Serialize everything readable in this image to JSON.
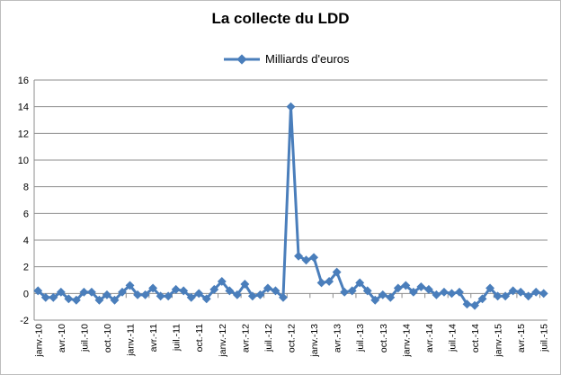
{
  "chart_data": {
    "type": "line",
    "title": "La collecte du LDD",
    "legend_position": "top",
    "grid": true,
    "color": "#4a7ebb",
    "series": [
      {
        "name": "Milliards d'euros",
        "values": [
          0.2,
          -0.3,
          -0.3,
          0.1,
          -0.4,
          -0.5,
          0.1,
          0.1,
          -0.5,
          -0.1,
          -0.5,
          0.1,
          0.6,
          -0.1,
          -0.1,
          0.4,
          -0.2,
          -0.2,
          0.3,
          0.2,
          -0.3,
          0.0,
          -0.4,
          0.3,
          0.9,
          0.2,
          -0.1,
          0.7,
          -0.2,
          -0.1,
          0.4,
          0.2,
          -0.3,
          14.0,
          2.8,
          2.5,
          2.7,
          0.8,
          0.9,
          1.6,
          0.1,
          0.2,
          0.8,
          0.2,
          -0.5,
          -0.1,
          -0.3,
          0.4,
          0.6,
          0.1,
          0.5,
          0.3,
          -0.1,
          0.1,
          0.0,
          0.1,
          -0.8,
          -0.9,
          -0.4,
          0.4,
          -0.2,
          -0.2,
          0.2,
          0.1,
          -0.2,
          0.1,
          0.0
        ]
      }
    ],
    "x_tick_labels": [
      "janv.-10",
      "avr.-10",
      "juil.-10",
      "oct.-10",
      "janv.-11",
      "avr.-11",
      "juil.-11",
      "oct.-11",
      "janv.-12",
      "avr.-12",
      "juil.-12",
      "oct.-12",
      "janv.-13",
      "avr.-13",
      "juil.-13",
      "oct.-13",
      "janv.-14",
      "avr.-14",
      "juil.-14",
      "oct.-14",
      "janv.-15",
      "avr.-15",
      "juil.-15"
    ],
    "y_ticks": [
      -2,
      0,
      2,
      4,
      6,
      8,
      10,
      12,
      14,
      16
    ],
    "ylim": [
      -2,
      16
    ]
  }
}
